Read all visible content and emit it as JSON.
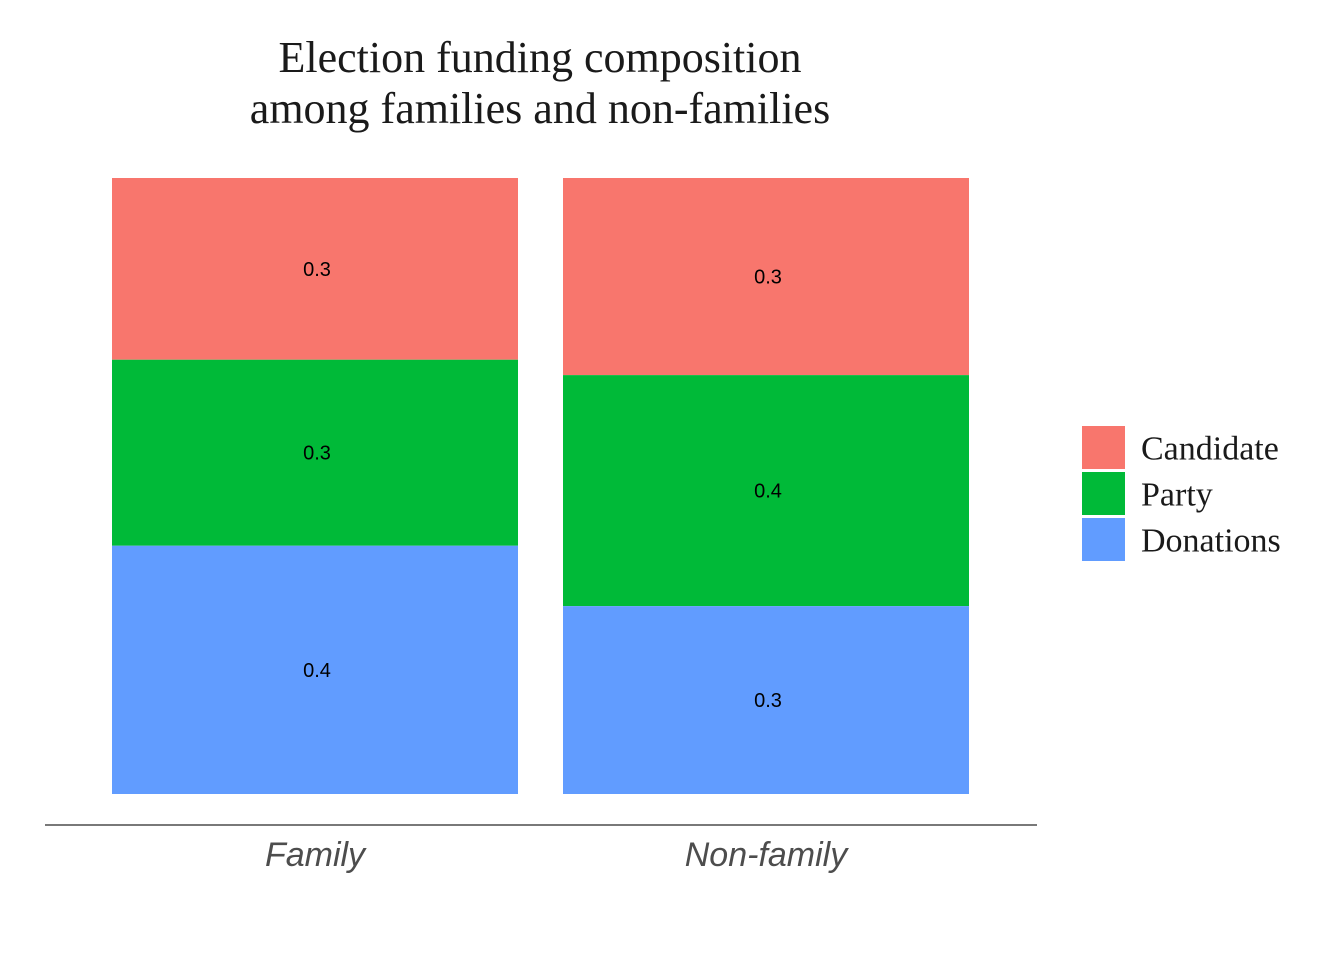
{
  "chart_data": {
    "type": "bar",
    "stacked": true,
    "title": [
      "Election funding composition",
      "among families and non-families"
    ],
    "categories": [
      "Family",
      "Non-family"
    ],
    "series": [
      {
        "name": "Candidate",
        "color": "#F8766D",
        "values": [
          0.295,
          0.32
        ],
        "labels": [
          "0.3",
          "0.3"
        ]
      },
      {
        "name": "Party",
        "color": "#00BA38",
        "values": [
          0.302,
          0.375
        ],
        "labels": [
          "0.3",
          "0.4"
        ]
      },
      {
        "name": "Donations",
        "color": "#619CFF",
        "values": [
          0.403,
          0.305
        ],
        "labels": [
          "0.4",
          "0.3"
        ]
      }
    ],
    "stack_order_top_to_bottom": [
      "Candidate",
      "Party",
      "Donations"
    ],
    "ylim": [
      0,
      1
    ],
    "y_axis_visible": false,
    "grid": false,
    "legend": {
      "position": "right",
      "entries": [
        "Candidate",
        "Party",
        "Donations"
      ]
    }
  }
}
